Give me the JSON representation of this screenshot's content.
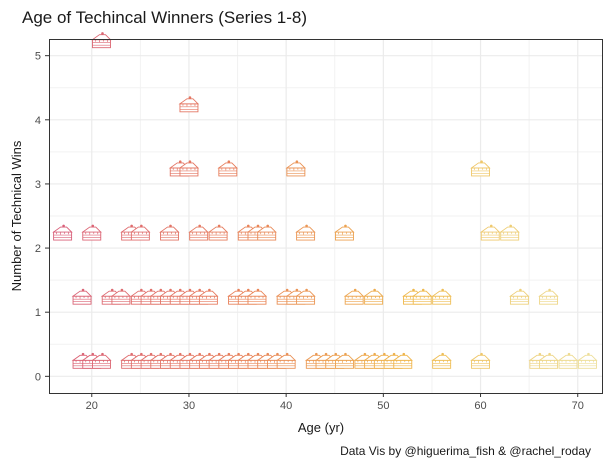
{
  "chart_data": {
    "type": "scatter",
    "title": "Age of Techincal Winners (Series 1-8)",
    "xlabel": "Age (yr)",
    "ylabel": "Number of Technical Wins",
    "caption": "Data Vis by @higuerima_fish & @rachel_roday",
    "xlim": [
      15.6,
      72.6
    ],
    "ylim": [
      -0.26,
      5.26
    ],
    "x_ticks": [
      20,
      30,
      40,
      50,
      60,
      70
    ],
    "y_ticks": [
      0,
      1,
      2,
      3,
      4,
      5
    ],
    "grid": true,
    "marker": "cake-slice-icon",
    "color_scale": [
      "#d9607a",
      "#e8805a",
      "#efb84a",
      "#eedf9a"
    ],
    "points": [
      {
        "x": 21,
        "y": 5
      },
      {
        "x": 30,
        "y": 4
      },
      {
        "x": 29,
        "y": 3
      },
      {
        "x": 30,
        "y": 3
      },
      {
        "x": 34,
        "y": 3
      },
      {
        "x": 41,
        "y": 3
      },
      {
        "x": 60,
        "y": 3
      },
      {
        "x": 17,
        "y": 2
      },
      {
        "x": 20,
        "y": 2
      },
      {
        "x": 24,
        "y": 2
      },
      {
        "x": 25,
        "y": 2
      },
      {
        "x": 28,
        "y": 2
      },
      {
        "x": 31,
        "y": 2
      },
      {
        "x": 33,
        "y": 2
      },
      {
        "x": 36,
        "y": 2
      },
      {
        "x": 37,
        "y": 2
      },
      {
        "x": 38,
        "y": 2
      },
      {
        "x": 42,
        "y": 2
      },
      {
        "x": 46,
        "y": 2
      },
      {
        "x": 61,
        "y": 2
      },
      {
        "x": 63,
        "y": 2
      },
      {
        "x": 19,
        "y": 1
      },
      {
        "x": 22,
        "y": 1
      },
      {
        "x": 23,
        "y": 1
      },
      {
        "x": 25,
        "y": 1
      },
      {
        "x": 26,
        "y": 1
      },
      {
        "x": 27,
        "y": 1
      },
      {
        "x": 28,
        "y": 1
      },
      {
        "x": 29,
        "y": 1
      },
      {
        "x": 30,
        "y": 1
      },
      {
        "x": 31,
        "y": 1
      },
      {
        "x": 32,
        "y": 1
      },
      {
        "x": 35,
        "y": 1
      },
      {
        "x": 36,
        "y": 1
      },
      {
        "x": 37,
        "y": 1
      },
      {
        "x": 40,
        "y": 1
      },
      {
        "x": 41,
        "y": 1
      },
      {
        "x": 42,
        "y": 1
      },
      {
        "x": 47,
        "y": 1
      },
      {
        "x": 49,
        "y": 1
      },
      {
        "x": 53,
        "y": 1
      },
      {
        "x": 54,
        "y": 1
      },
      {
        "x": 56,
        "y": 1
      },
      {
        "x": 64,
        "y": 1
      },
      {
        "x": 67,
        "y": 1
      },
      {
        "x": 19,
        "y": 0
      },
      {
        "x": 20,
        "y": 0
      },
      {
        "x": 21,
        "y": 0
      },
      {
        "x": 24,
        "y": 0
      },
      {
        "x": 25,
        "y": 0
      },
      {
        "x": 26,
        "y": 0
      },
      {
        "x": 27,
        "y": 0
      },
      {
        "x": 28,
        "y": 0
      },
      {
        "x": 29,
        "y": 0
      },
      {
        "x": 30,
        "y": 0
      },
      {
        "x": 31,
        "y": 0
      },
      {
        "x": 32,
        "y": 0
      },
      {
        "x": 33,
        "y": 0
      },
      {
        "x": 34,
        "y": 0
      },
      {
        "x": 35,
        "y": 0
      },
      {
        "x": 36,
        "y": 0
      },
      {
        "x": 37,
        "y": 0
      },
      {
        "x": 38,
        "y": 0
      },
      {
        "x": 39,
        "y": 0
      },
      {
        "x": 40,
        "y": 0
      },
      {
        "x": 43,
        "y": 0
      },
      {
        "x": 44,
        "y": 0
      },
      {
        "x": 45,
        "y": 0
      },
      {
        "x": 46,
        "y": 0
      },
      {
        "x": 48,
        "y": 0
      },
      {
        "x": 49,
        "y": 0
      },
      {
        "x": 50,
        "y": 0
      },
      {
        "x": 51,
        "y": 0
      },
      {
        "x": 52,
        "y": 0
      },
      {
        "x": 56,
        "y": 0
      },
      {
        "x": 60,
        "y": 0
      },
      {
        "x": 66,
        "y": 0
      },
      {
        "x": 67,
        "y": 0
      },
      {
        "x": 69,
        "y": 0
      },
      {
        "x": 71,
        "y": 0
      }
    ]
  }
}
